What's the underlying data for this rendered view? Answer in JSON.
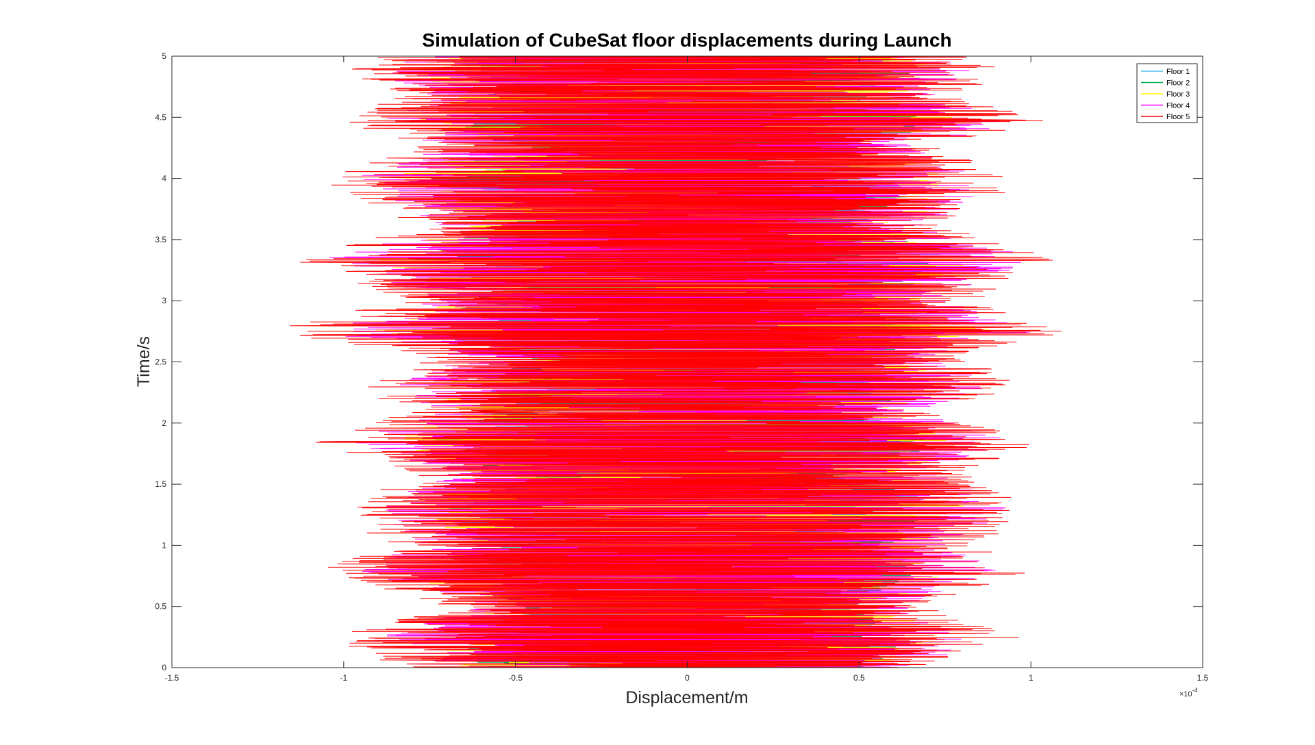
{
  "chart_data": {
    "type": "line",
    "title": "Simulation of CubeSat floor displacements during Launch",
    "xlabel": "Displacement/m",
    "ylabel": "Time/s",
    "xlim": [
      -1.5,
      1.5
    ],
    "ylim": [
      0,
      5
    ],
    "x_multiplier_label": "×10",
    "x_multiplier_exp": "-4",
    "x_ticks": [
      "-1.5",
      "-1",
      "-0.5",
      "0",
      "0.5",
      "1",
      "1.5"
    ],
    "y_ticks": [
      "0",
      "0.5",
      "1",
      "1.5",
      "2",
      "2.5",
      "3",
      "3.5",
      "4",
      "4.5",
      "5"
    ],
    "x_tick_values": [
      -1.5,
      -1,
      -0.5,
      0,
      0.5,
      1,
      1.5
    ],
    "y_tick_values": [
      0,
      0.5,
      1,
      1.5,
      2,
      2.5,
      3,
      3.5,
      4,
      4.5,
      5
    ],
    "grid": false,
    "legend_position": "top-right",
    "series": [
      {
        "name": "Floor 1",
        "color": "#4dbeee"
      },
      {
        "name": "Floor 2",
        "color": "#00b050"
      },
      {
        "name": "Floor 3",
        "color": "#ffff00"
      },
      {
        "name": "Floor 4",
        "color": "#ff00ff"
      },
      {
        "name": "Floor 5",
        "color": "#ff0000"
      }
    ],
    "envelope": {
      "time": [
        0,
        0.25,
        0.5,
        0.8,
        1.0,
        1.3,
        1.6,
        1.85,
        2.1,
        2.3,
        2.55,
        2.75,
        3.0,
        3.35,
        3.6,
        3.8,
        4.0,
        4.25,
        4.45,
        4.7,
        4.85,
        5.0
      ],
      "min_displacement": [
        -0.85,
        -1.05,
        -0.7,
        -1.08,
        -0.9,
        -1.0,
        -0.8,
        -1.1,
        -0.85,
        -0.95,
        -0.75,
        -1.23,
        -0.85,
        -1.17,
        -0.8,
        -0.95,
        -1.08,
        -0.8,
        -1.0,
        -0.85,
        -1.0,
        -0.95
      ],
      "max_displacement": [
        0.75,
        0.97,
        0.7,
        1.02,
        0.85,
        1.05,
        0.8,
        1.05,
        0.75,
        1.0,
        0.8,
        1.13,
        0.85,
        1.13,
        0.75,
        0.95,
        0.95,
        0.75,
        1.07,
        0.8,
        0.93,
        0.85
      ]
    }
  }
}
